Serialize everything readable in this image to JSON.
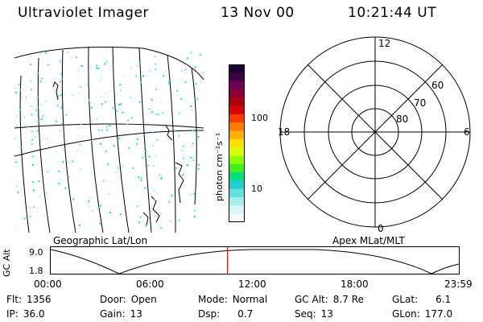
{
  "header": {
    "title": "Ultraviolet Imager",
    "date": "13 Nov 00",
    "time": "10:21:44 UT"
  },
  "left_panel": {
    "caption": "Geographic Lat/Lon"
  },
  "right_panel": {
    "caption": "Apex MLat/MLT",
    "mlt_labels": {
      "top": "12",
      "bottom": "0",
      "left": "18",
      "right": "6"
    },
    "lat_labels": [
      "60",
      "70",
      "80"
    ]
  },
  "colorbar": {
    "unit_label": "photon cm⁻²s⁻¹",
    "tick_100": "100",
    "tick_10": "10",
    "colors": [
      "#1a0033",
      "#3d0044",
      "#6a0058",
      "#8b0030",
      "#b00010",
      "#d80000",
      "#ff3a00",
      "#ff7a00",
      "#ffb000",
      "#ffe000",
      "#d8ff00",
      "#90ff00",
      "#40f020",
      "#00e080",
      "#20d0d0",
      "#60e0e0",
      "#a8ecec",
      "#d8f6f6",
      "#f4fbfb"
    ]
  },
  "orbit_plot": {
    "ylabel": "GC Alt",
    "ymax_label": "9.0",
    "ymin_label": "1.8",
    "x_ticks": [
      "00:00",
      "06:00",
      "12:00",
      "18:00",
      "23:59"
    ],
    "current_time_fraction": 0.433
  },
  "status": {
    "flt_label": "Flt:",
    "flt_value": "1356",
    "ip_label": "IP:",
    "ip_value": "36.0",
    "door_label": "Door:",
    "door_value": "Open",
    "gain_label": "Gain:",
    "gain_value": "13",
    "mode_label": "Mode:",
    "mode_value": "Normal",
    "dsp_label": "Dsp:",
    "dsp_value": "0.7",
    "gcalt_label": "GC Alt:",
    "gcalt_value": "8.7 Re",
    "seq_label": "Seq:",
    "seq_value": "13",
    "glat_label": "GLat:",
    "glat_value": "6.1",
    "glon_label": "GLon:",
    "glon_value": "177.0"
  }
}
